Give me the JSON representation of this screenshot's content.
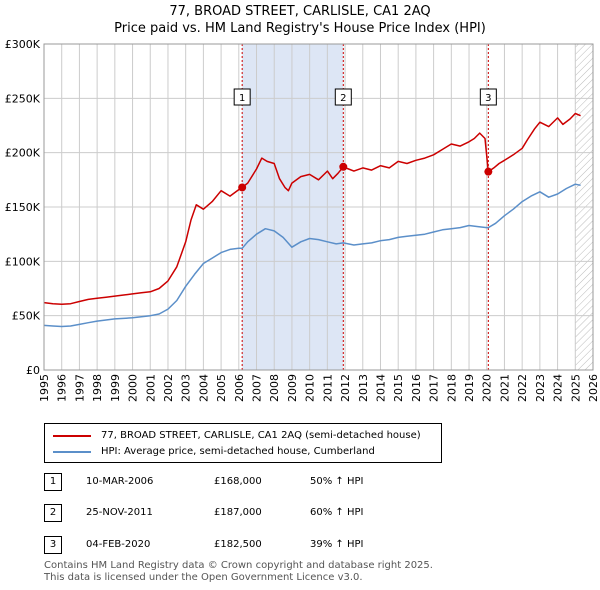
{
  "header": {
    "title_line1": "77, BROAD STREET, CARLISLE, CA1 2AQ",
    "title_line2": "Price paid vs. HM Land Registry's House Price Index (HPI)"
  },
  "legend": {
    "property_label": "77, BROAD STREET, CARLISLE, CA1 2AQ (semi-detached house)",
    "hpi_label": "HPI: Average price, semi-detached house, Cumberland"
  },
  "transactions": [
    {
      "num": "1",
      "date": "10-MAR-2006",
      "price": "£168,000",
      "hpi": "50% ↑ HPI"
    },
    {
      "num": "2",
      "date": "25-NOV-2011",
      "price": "£187,000",
      "hpi": "60% ↑ HPI"
    },
    {
      "num": "3",
      "date": "04-FEB-2020",
      "price": "£182,500",
      "hpi": "39% ↑ HPI"
    }
  ],
  "footer": {
    "line1": "Contains HM Land Registry data © Crown copyright and database right 2025.",
    "line2": "This data is licensed under the Open Government Licence v3.0."
  },
  "colors": {
    "property": "#cc0000",
    "hpi": "#5b8fc9",
    "shade": "#dde6f5",
    "grid": "#cccccc"
  },
  "chart_data": {
    "type": "line",
    "title": "77, BROAD STREET, CARLISLE, CA1 2AQ — Price paid vs. HM Land Registry's House Price Index (HPI)",
    "xlabel": "",
    "ylabel": "",
    "xlim": [
      1995,
      2026
    ],
    "ylim": [
      0,
      300000
    ],
    "grid": true,
    "x_ticks": [
      "1995",
      "1996",
      "1997",
      "1998",
      "1999",
      "2000",
      "2001",
      "2002",
      "2003",
      "2004",
      "2005",
      "2006",
      "2007",
      "2008",
      "2009",
      "2010",
      "2011",
      "2012",
      "2013",
      "2014",
      "2015",
      "2016",
      "2017",
      "2018",
      "2019",
      "2020",
      "2021",
      "2022",
      "2023",
      "2024",
      "2025",
      "2026"
    ],
    "y_ticks": [
      {
        "value": 0,
        "label": "£0"
      },
      {
        "value": 50000,
        "label": "£50K"
      },
      {
        "value": 100000,
        "label": "£100K"
      },
      {
        "value": 150000,
        "label": "£150K"
      },
      {
        "value": 200000,
        "label": "£200K"
      },
      {
        "value": 250000,
        "label": "£250K"
      },
      {
        "value": 300000,
        "label": "£300K"
      }
    ],
    "series": [
      {
        "name": "77, BROAD STREET, CARLISLE, CA1 2AQ (semi-detached house)",
        "x": [
          1995,
          1995.5,
          1996,
          1996.5,
          1997,
          1997.5,
          1998,
          1998.5,
          1999,
          1999.5,
          2000,
          2000.5,
          2001,
          2001.5,
          2002,
          2002.5,
          2003,
          2003.3,
          2003.6,
          2004,
          2004.5,
          2005,
          2005.5,
          2006,
          2006.19,
          2006.5,
          2007,
          2007.3,
          2007.6,
          2008,
          2008.3,
          2008.6,
          2008.8,
          2009,
          2009.5,
          2010,
          2010.5,
          2011,
          2011.3,
          2011.6,
          2011.9,
          2012.2,
          2012.5,
          2013,
          2013.5,
          2014,
          2014.5,
          2015,
          2015.5,
          2016,
          2016.5,
          2017,
          2017.5,
          2018,
          2018.5,
          2019,
          2019.3,
          2019.6,
          2019.9,
          2020.09,
          2020.4,
          2020.7,
          2021,
          2021.5,
          2022,
          2022.3,
          2022.7,
          2023,
          2023.5,
          2024,
          2024.3,
          2024.7,
          2025,
          2025.3
        ],
        "y": [
          62000,
          61000,
          60500,
          61000,
          63000,
          65000,
          66000,
          67000,
          68000,
          69000,
          70000,
          71000,
          72000,
          75000,
          82000,
          95000,
          118000,
          138000,
          152000,
          148000,
          155000,
          165000,
          160000,
          166000,
          168000,
          172000,
          185000,
          195000,
          192000,
          190000,
          176000,
          168000,
          165000,
          172000,
          178000,
          180000,
          175000,
          183000,
          176000,
          181000,
          187000,
          185000,
          183000,
          186000,
          184000,
          188000,
          186000,
          192000,
          190000,
          193000,
          195000,
          198000,
          203000,
          208000,
          206000,
          210000,
          213000,
          218000,
          213000,
          182500,
          186000,
          190000,
          193000,
          198000,
          204000,
          212000,
          222000,
          228000,
          224000,
          232000,
          226000,
          231000,
          236000,
          234000
        ]
      },
      {
        "name": "HPI: Average price, semi-detached house, Cumberland",
        "x": [
          1995,
          1995.5,
          1996,
          1996.5,
          1997,
          1997.5,
          1998,
          1998.5,
          1999,
          1999.5,
          2000,
          2000.5,
          2001,
          2001.5,
          2002,
          2002.5,
          2003,
          2003.5,
          2004,
          2004.5,
          2005,
          2005.5,
          2006,
          2006.19,
          2006.5,
          2007,
          2007.5,
          2008,
          2008.5,
          2009,
          2009.5,
          2010,
          2010.5,
          2011,
          2011.5,
          2011.9,
          2012.5,
          2013,
          2013.5,
          2014,
          2014.5,
          2015,
          2015.5,
          2016,
          2016.5,
          2017,
          2017.5,
          2018,
          2018.5,
          2019,
          2019.5,
          2020,
          2020.09,
          2020.5,
          2021,
          2021.5,
          2022,
          2022.5,
          2023,
          2023.5,
          2024,
          2024.5,
          2025,
          2025.3
        ],
        "y": [
          41000,
          40500,
          40000,
          40500,
          42000,
          43500,
          45000,
          46000,
          47000,
          47500,
          48000,
          49000,
          50000,
          51500,
          56000,
          64000,
          77000,
          88000,
          98000,
          103000,
          108000,
          111000,
          112000,
          112000,
          118000,
          125000,
          130000,
          128000,
          122000,
          113000,
          118000,
          121000,
          120000,
          118000,
          116000,
          117000,
          115000,
          116000,
          117000,
          119000,
          120000,
          122000,
          123000,
          124000,
          125000,
          127000,
          129000,
          130000,
          131000,
          133000,
          132000,
          131000,
          131000,
          135000,
          142000,
          148000,
          155000,
          160000,
          164000,
          159000,
          162000,
          167000,
          171000,
          170000
        ]
      }
    ],
    "markers": [
      {
        "label": "1",
        "x": 2006.19,
        "y": 168000
      },
      {
        "label": "2",
        "x": 2011.9,
        "y": 187000
      },
      {
        "label": "3",
        "x": 2020.09,
        "y": 182500
      }
    ],
    "shaded_ranges": [
      [
        2006.19,
        2011.9
      ]
    ],
    "hatched_range": [
      2025.0,
      2026
    ]
  }
}
